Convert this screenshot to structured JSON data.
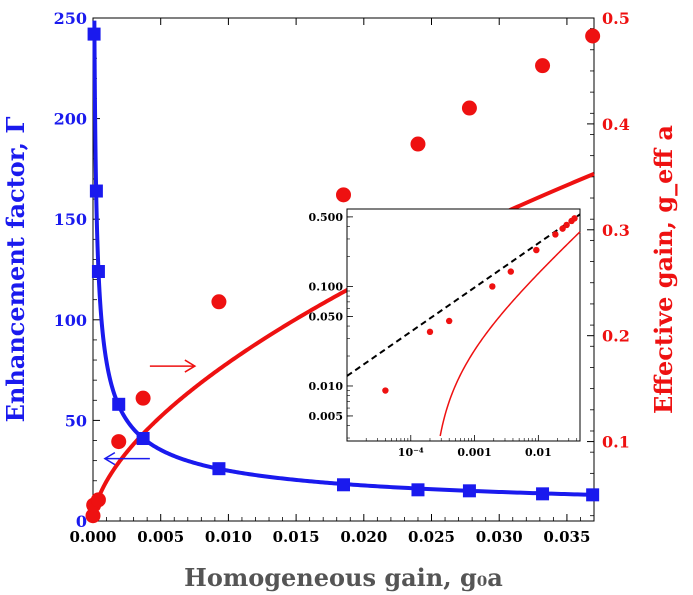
{
  "chart_data": {
    "type": "line",
    "xlabel": "Homogeneous gain, g₀a",
    "ylabel_left": "Enhancement factor, Γ",
    "ylabel_right": "Effective gain, g_eff a",
    "xlim": [
      0,
      0.037
    ],
    "ylim_left": [
      0,
      250
    ],
    "ylim_right": [
      0.025,
      0.5
    ],
    "x_ticks": [
      "0.000",
      "0.005",
      "0.010",
      "0.015",
      "0.020",
      "0.025",
      "0.030",
      "0.035"
    ],
    "y_left_ticks": [
      "0",
      "50",
      "100",
      "150",
      "200",
      "250"
    ],
    "y_right_ticks": [
      "0.1",
      "0.2",
      "0.3",
      "0.4",
      "0.5"
    ],
    "colors": {
      "left": "#1a1aee",
      "right": "#ee1111",
      "inset_fit": "#000000"
    },
    "series": [
      {
        "axis": "left",
        "marker": "square",
        "x": [
          8e-05,
          0.00025,
          0.0004,
          0.0019,
          0.0037,
          0.0093,
          0.0185,
          0.024,
          0.0278,
          0.0332,
          0.0369
        ],
        "y": [
          242,
          164,
          124,
          58,
          41,
          26,
          18,
          15.5,
          15,
          13.5,
          13
        ]
      },
      {
        "axis": "right",
        "marker": "circle",
        "x": [
          0.0,
          5e-05,
          0.0004,
          0.0019,
          0.0037,
          0.0093,
          0.0185,
          0.024,
          0.0278,
          0.0332,
          0.0369
        ],
        "y": [
          0.03,
          0.04,
          0.045,
          0.1,
          0.141,
          0.232,
          0.333,
          0.381,
          0.415,
          0.455,
          0.483
        ]
      }
    ],
    "annotations": [
      {
        "direction": "right",
        "color": "#ee1111",
        "x": 0.0042,
        "y": 77
      },
      {
        "direction": "left",
        "color": "#1a1aee",
        "x": 0.0042,
        "y": 31
      }
    ],
    "inset": {
      "type": "line",
      "xscale": "log",
      "yscale": "log",
      "xlim": [
        1e-05,
        0.045
      ],
      "ylim": [
        0.0028,
        0.6
      ],
      "x_ticks": [
        "10⁻⁴",
        "0.001",
        "0.01"
      ],
      "y_ticks": [
        "0.005",
        "0.010",
        "0.050",
        "0.100",
        "0.500"
      ],
      "points": {
        "x": [
          4e-05,
          0.0002,
          0.0004,
          0.0019,
          0.0037,
          0.0093,
          0.0185,
          0.024,
          0.0278,
          0.0332,
          0.0369
        ],
        "y": [
          0.009,
          0.035,
          0.045,
          0.1,
          0.141,
          0.232,
          0.333,
          0.381,
          0.415,
          0.455,
          0.483
        ]
      },
      "fit_line": {
        "style": "dashed",
        "x": [
          1e-05,
          0.045
        ],
        "y": [
          0.0126,
          0.53
        ]
      }
    }
  }
}
